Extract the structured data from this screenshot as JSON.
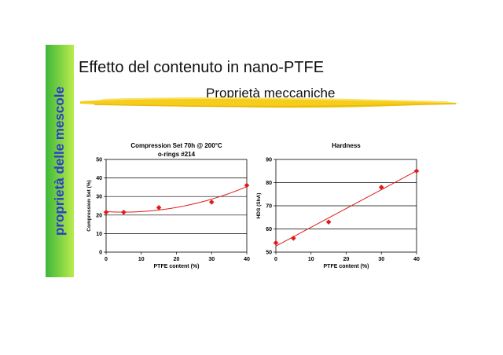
{
  "slide": {
    "title": "Effetto del contenuto in nano-PTFE",
    "subtitle": "Proprietà meccaniche",
    "sidebar_label": "proprietà delle mescole",
    "colors": {
      "sidebar": "#6dd23f",
      "sidebar_text": "#2a3ec9",
      "highlight_stroke": "#f5cd1a",
      "data": "#e11a1a"
    }
  },
  "chart_data": [
    {
      "type": "scatter",
      "title_lines": [
        "Compression Set 70h @ 200°C",
        "o-rings #214"
      ],
      "xlabel": "PTFE content (%)",
      "ylabel": "Compression Set (%)",
      "xlim": [
        0,
        40
      ],
      "ylim": [
        0,
        50
      ],
      "xticks": [
        0,
        10,
        20,
        30,
        40
      ],
      "yticks": [
        0,
        10,
        20,
        30,
        40,
        50
      ],
      "grid": "horizontal",
      "x": [
        0,
        5,
        15,
        30,
        40
      ],
      "y": [
        21.5,
        21.5,
        24,
        27,
        36
      ],
      "trendline": "polynomial"
    },
    {
      "type": "scatter",
      "title_lines": [
        "Hardness"
      ],
      "xlabel": "PTFE content (%)",
      "ylabel": "HDS (ShA)",
      "xlim": [
        0,
        40
      ],
      "ylim": [
        50,
        90
      ],
      "xticks": [
        0,
        10,
        20,
        30,
        40
      ],
      "yticks": [
        50,
        60,
        70,
        80,
        90
      ],
      "grid": "horizontal",
      "x": [
        0,
        5,
        15,
        30,
        40
      ],
      "y": [
        54,
        56,
        63,
        78,
        85
      ],
      "trendline": "linear"
    }
  ]
}
